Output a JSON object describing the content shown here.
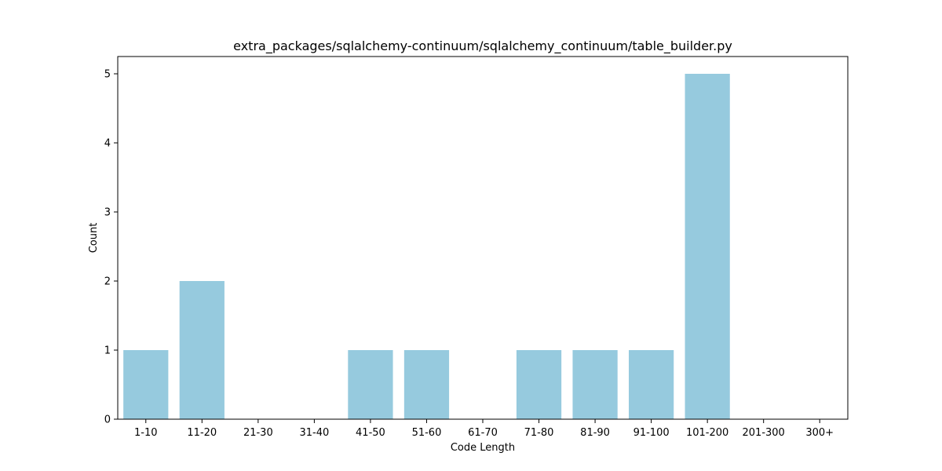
{
  "chart_data": {
    "type": "bar",
    "title": "extra_packages/sqlalchemy-continuum/sqlalchemy_continuum/table_builder.py",
    "xlabel": "Code Length",
    "ylabel": "Count",
    "categories": [
      "1-10",
      "11-20",
      "21-30",
      "31-40",
      "41-50",
      "51-60",
      "61-70",
      "71-80",
      "81-90",
      "91-100",
      "101-200",
      "201-300",
      "300+"
    ],
    "values": [
      1,
      2,
      0,
      0,
      1,
      1,
      0,
      1,
      1,
      1,
      5,
      0,
      0
    ],
    "ylim": [
      0,
      5.25
    ],
    "yticks": [
      0,
      1,
      2,
      3,
      4,
      5
    ],
    "bar_color": "#96cade",
    "grid": false,
    "legend": "none"
  }
}
